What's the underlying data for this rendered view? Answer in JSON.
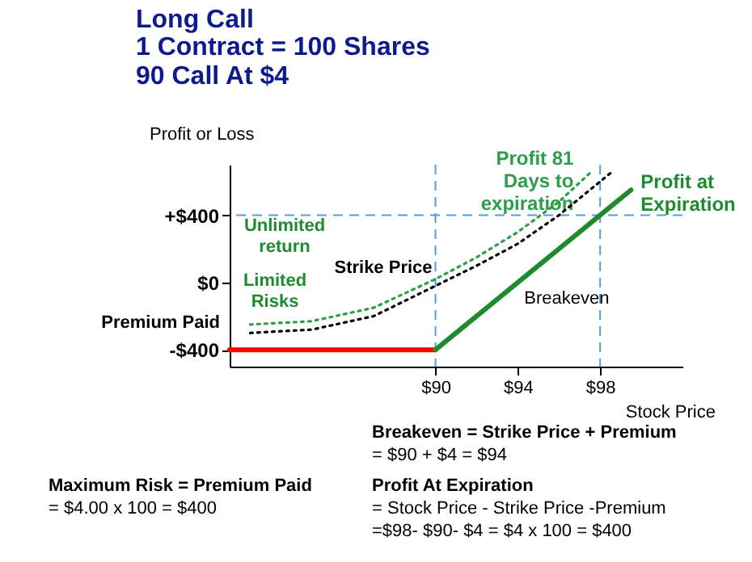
{
  "chart_data": {
    "type": "line",
    "title": "Long Call",
    "subtitle": "1 Contract = 100 Shares\n90 Call At $4",
    "xlabel": "Stock Price",
    "ylabel": "Profit or Loss",
    "xlim": [
      80,
      102
    ],
    "ylim": [
      -500,
      700
    ],
    "xticks": [
      {
        "value": 90,
        "label": "$90"
      },
      {
        "value": 94,
        "label": "$94"
      },
      {
        "value": 98,
        "label": "$98"
      }
    ],
    "yticks": [
      {
        "value": -400,
        "label": "-$400"
      },
      {
        "value": 0,
        "label": "$0"
      },
      {
        "value": 400,
        "label": "+$400"
      }
    ],
    "series": [
      {
        "color": "#ff0000",
        "x": [
          80,
          90
        ],
        "values": [
          -400,
          -400
        ],
        "line_style": "solid"
      },
      {
        "name": "Profit at Expiration",
        "color": "#1e8c2e",
        "x": [
          90,
          99.5
        ],
        "values": [
          -400,
          550
        ],
        "line_style": "solid"
      },
      {
        "name": "Profit 81 Days to expiration",
        "color": "#2e9e4a",
        "x": [
          81,
          84,
          87,
          90,
          92,
          94,
          96,
          97.5
        ],
        "values": [
          -250,
          -230,
          -150,
          20,
          150,
          300,
          480,
          650
        ],
        "line_style": "dotted"
      },
      {
        "color": "#000000",
        "x": [
          81,
          84,
          87,
          90,
          92,
          94,
          96,
          98.5
        ],
        "values": [
          -300,
          -280,
          -200,
          -20,
          100,
          230,
          400,
          650
        ],
        "line_style": "dotted"
      }
    ],
    "ref_lines": [
      {
        "axis": "y",
        "value": 400,
        "color": "#5b9bd5",
        "line_style": "dashed"
      },
      {
        "axis": "x",
        "value": 90,
        "color": "#5b9bd5",
        "line_style": "dashed"
      },
      {
        "axis": "x",
        "value": 98,
        "color": "#5b9bd5",
        "line_style": "dashed"
      }
    ],
    "annotations": [
      {
        "text": "Strike Price",
        "x": 90,
        "y": 0
      },
      {
        "text": "Breakeven",
        "x": 94,
        "y": 0
      },
      "Unlimited return",
      "Limited Risks",
      "Premium Paid",
      "Breakeven = Strike Price + Premium",
      "= $90 + $4 = $94",
      "Profit At Expiration",
      "= Stock Price - Strike Price -Premium",
      "=$98- $90- $4 = $4 x 100 = $400",
      "Maximum Risk = Premium Paid",
      "= $4.00 x 100 = $400"
    ],
    "grid": false,
    "legend": false,
    "marker": "none"
  }
}
